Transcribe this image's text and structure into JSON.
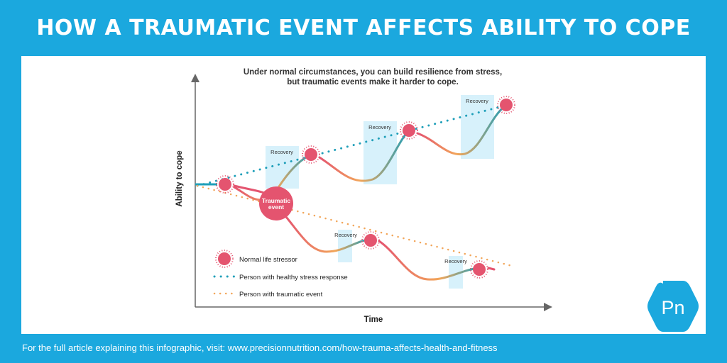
{
  "header": {
    "title": "HOW A TRAUMATIC EVENT AFFECTS ABILITY TO COPE"
  },
  "diagram": {
    "subtitle_line1": "Under normal circumstances, you can build resilience from stress,",
    "subtitle_line2": "but traumatic events make it harder to cope.",
    "y_axis_label": "Ability to cope",
    "x_axis_label": "Time",
    "recovery_label": "Recovery",
    "traumatic_event_line1": "Traumatic",
    "traumatic_event_line2": "event",
    "legend": {
      "stressor": "Normal life stressor",
      "healthy": "Person with healthy stress response",
      "traumatic": "Person with traumatic event"
    },
    "colors": {
      "background": "#1ba8de",
      "stressor_pink": "#e4546f",
      "healthy_teal": "#1f9fb9",
      "traumatic_orange": "#f2a65a",
      "recovery_box": "#d7f1fb"
    }
  },
  "logo": {
    "text": "Pn"
  },
  "footer": {
    "text": "For the full article explaining this infographic, visit: www.precisionnutrition.com/how-trauma-affects-health-and-fitness"
  }
}
